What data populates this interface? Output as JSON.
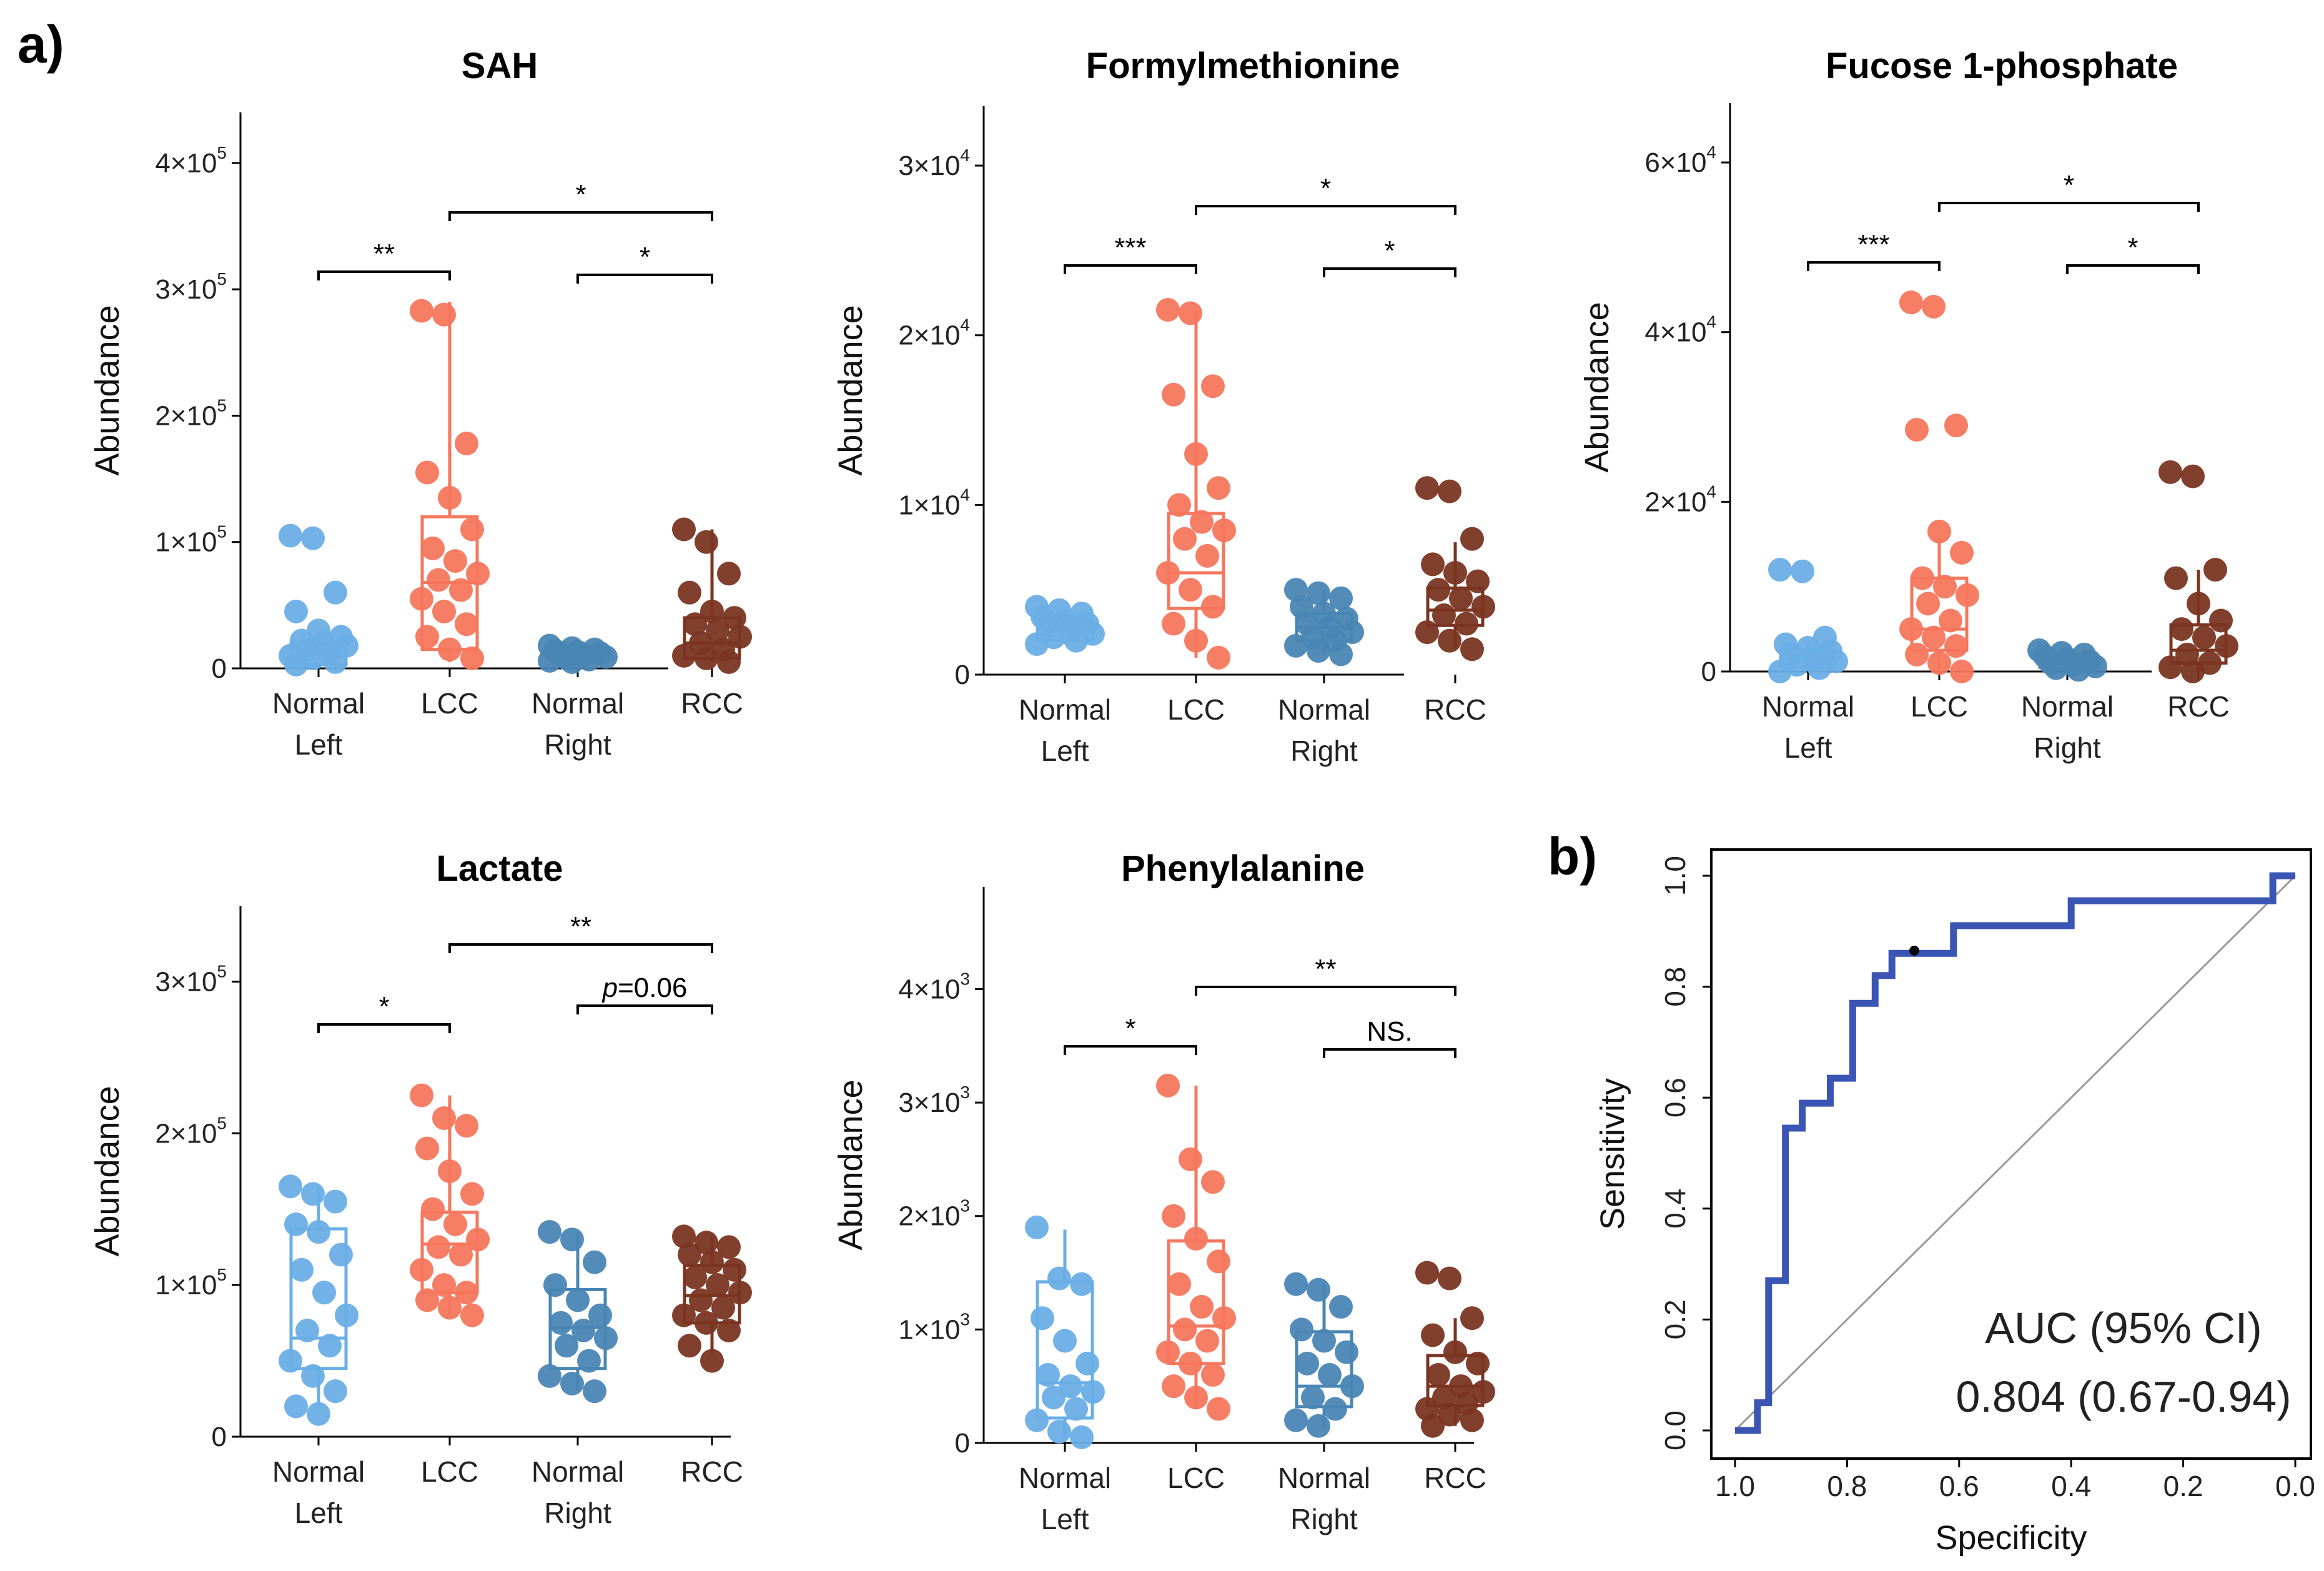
{
  "panel_a_label": "a)",
  "panel_b_label": "b)",
  "colors": {
    "Normal Left": "#6aaee6",
    "LCC": "#f5775d",
    "Normal Right": "#4a86b4",
    "RCC": "#7a3522",
    "roc": "#3a55b4"
  },
  "chart_data": [
    {
      "type": "boxplot",
      "title": "SAH",
      "ylabel": "Abundance",
      "categories": [
        "Normal Left",
        "LCC",
        "Normal Right",
        "RCC"
      ],
      "tick_lines": [
        [
          "Normal",
          "Left"
        ],
        [
          "LCC"
        ],
        [
          "Normal",
          "Right"
        ],
        [
          "RCC"
        ]
      ],
      "ylim": [
        0,
        440000
      ],
      "yticks": [
        0,
        100000,
        200000,
        300000,
        400000
      ],
      "ytick_labels": [
        [
          "0",
          ""
        ],
        [
          "1×10",
          "5"
        ],
        [
          "2×10",
          "5"
        ],
        [
          "3×10",
          "5"
        ],
        [
          "4×10",
          "5"
        ]
      ],
      "boxes": [
        {
          "min": 0,
          "q1": 3000,
          "median": 11000,
          "q3": 20000,
          "max": 25000
        },
        {
          "min": 5000,
          "q1": 15000,
          "median": 68000,
          "q3": 120000,
          "max": 290000
        },
        {
          "min": 3000,
          "q1": 7000,
          "median": 11000,
          "q3": 16000,
          "max": 20000
        },
        {
          "min": 5000,
          "q1": 8000,
          "median": 20000,
          "q3": 40000,
          "max": 110000
        }
      ],
      "points": [
        [
          105000,
          103000,
          60000,
          45000,
          30000,
          25000,
          22000,
          20000,
          18000,
          15000,
          12000,
          10000,
          8000,
          5000,
          3000
        ],
        [
          283000,
          280000,
          178000,
          155000,
          135000,
          110000,
          95000,
          85000,
          75000,
          70000,
          62000,
          55000,
          45000,
          35000,
          25000,
          15000,
          8000
        ],
        [
          18000,
          16000,
          15000,
          14000,
          13000,
          12000,
          11000,
          10000,
          9000,
          8000,
          7000,
          6000,
          5000
        ],
        [
          110000,
          100000,
          75000,
          60000,
          45000,
          40000,
          35000,
          30000,
          25000,
          20000,
          15000,
          10000,
          8000,
          5000
        ]
      ],
      "significance": [
        {
          "from": 0,
          "to": 1,
          "label": "**"
        },
        {
          "from": 1,
          "to": 3,
          "label": "*"
        },
        {
          "from": 2,
          "to": 3,
          "label": "*"
        }
      ]
    },
    {
      "type": "boxplot",
      "title": "Formylmethionine",
      "ylabel": "Abundance",
      "categories": [
        "Normal Left",
        "LCC",
        "Normal Right",
        "RCC"
      ],
      "tick_lines": [
        [
          "Normal",
          "Left"
        ],
        [
          "LCC"
        ],
        [
          "Normal",
          "Right"
        ],
        [
          "RCC"
        ]
      ],
      "ylim": [
        0,
        33500
      ],
      "yticks": [
        0,
        10000,
        20000,
        30000
      ],
      "ytick_labels": [
        [
          "0",
          ""
        ],
        [
          "1×10",
          "4"
        ],
        [
          "2×10",
          "4"
        ],
        [
          "3×10",
          "4"
        ]
      ],
      "boxes": [
        {
          "min": 1800,
          "q1": 2000,
          "median": 2700,
          "q3": 3300,
          "max": 4000
        },
        {
          "min": 1000,
          "q1": 3900,
          "median": 6000,
          "q3": 9500,
          "max": 21500
        },
        {
          "min": 1200,
          "q1": 2000,
          "median": 2800,
          "q3": 3600,
          "max": 5000
        },
        {
          "min": 1500,
          "q1": 2900,
          "median": 3800,
          "q3": 5100,
          "max": 7800
        }
      ],
      "points": [
        [
          4000,
          3800,
          3600,
          3400,
          3200,
          3000,
          2800,
          2600,
          2400,
          2200,
          2000,
          1800
        ],
        [
          21500,
          21300,
          17000,
          16500,
          13000,
          11000,
          10000,
          9000,
          8500,
          8000,
          7000,
          6000,
          5000,
          4000,
          3000,
          2000,
          1000
        ],
        [
          5000,
          4800,
          4500,
          4000,
          3600,
          3300,
          3000,
          2800,
          2500,
          2200,
          2000,
          1700,
          1400,
          1200
        ],
        [
          11000,
          10800,
          8000,
          6500,
          6000,
          5500,
          5000,
          4500,
          4000,
          3500,
          3000,
          2500,
          2000,
          1500
        ]
      ],
      "significance": [
        {
          "from": 0,
          "to": 1,
          "label": "***"
        },
        {
          "from": 1,
          "to": 3,
          "label": "*"
        },
        {
          "from": 2,
          "to": 3,
          "label": "*"
        }
      ]
    },
    {
      "type": "boxplot",
      "title": "Fucose 1-phosphate",
      "ylabel": "Abundance",
      "categories": [
        "Normal Left",
        "LCC",
        "Normal Right",
        "RCC"
      ],
      "tick_lines": [
        [
          "Normal",
          "Left"
        ],
        [
          "LCC"
        ],
        [
          "Normal",
          "Right"
        ],
        [
          "RCC"
        ]
      ],
      "ylim": [
        0,
        67000
      ],
      "yticks": [
        0,
        20000,
        40000,
        60000
      ],
      "ytick_labels": [
        [
          "0",
          ""
        ],
        [
          "2×10",
          "4"
        ],
        [
          "4×10",
          "4"
        ],
        [
          "6×10",
          "4"
        ]
      ],
      "boxes": [
        {
          "min": 0,
          "q1": 500,
          "median": 1500,
          "q3": 2500,
          "max": 3500
        },
        {
          "min": 0,
          "q1": 2500,
          "median": 5000,
          "q3": 11000,
          "max": 16000
        },
        {
          "min": 0,
          "q1": 500,
          "median": 1000,
          "q3": 1500,
          "max": 2000
        },
        {
          "min": 0,
          "q1": 1000,
          "median": 2500,
          "q3": 5500,
          "max": 12000
        }
      ],
      "points": [
        [
          12000,
          11800,
          4000,
          3200,
          2800,
          2400,
          2000,
          1600,
          1200,
          800,
          400,
          0
        ],
        [
          43500,
          43000,
          29000,
          28500,
          16500,
          14000,
          11000,
          10000,
          9000,
          8000,
          6000,
          5000,
          4000,
          3000,
          2000,
          1000,
          0
        ],
        [
          2500,
          2200,
          2000,
          1800,
          1500,
          1200,
          1000,
          800,
          600,
          400,
          200
        ],
        [
          23500,
          23000,
          12000,
          11000,
          8000,
          6000,
          5000,
          4000,
          3000,
          2000,
          1000,
          500,
          0
        ]
      ],
      "significance": [
        {
          "from": 0,
          "to": 1,
          "label": "***"
        },
        {
          "from": 1,
          "to": 3,
          "label": "*"
        },
        {
          "from": 2,
          "to": 3,
          "label": "*"
        }
      ]
    },
    {
      "type": "boxplot",
      "title": "Lactate",
      "ylabel": "Abundance",
      "categories": [
        "Normal Left",
        "LCC",
        "Normal Right",
        "RCC"
      ],
      "tick_lines": [
        [
          "Normal",
          "Left"
        ],
        [
          "LCC"
        ],
        [
          "Normal",
          "Right"
        ],
        [
          "RCC"
        ]
      ],
      "ylim": [
        0,
        350000
      ],
      "yticks": [
        0,
        100000,
        200000,
        300000
      ],
      "ytick_labels": [
        [
          "0",
          ""
        ],
        [
          "1×10",
          "5"
        ],
        [
          "2×10",
          "5"
        ],
        [
          "3×10",
          "5"
        ]
      ],
      "boxes": [
        {
          "min": 20000,
          "q1": 45000,
          "median": 65000,
          "q3": 137000,
          "max": 165000
        },
        {
          "min": 80000,
          "q1": 95000,
          "median": 127000,
          "q3": 148000,
          "max": 225000
        },
        {
          "min": 30000,
          "q1": 45000,
          "median": 72000,
          "q3": 97000,
          "max": 135000
        },
        {
          "min": 55000,
          "q1": 75000,
          "median": 93000,
          "q3": 113000,
          "max": 132000
        }
      ],
      "points": [
        [
          165000,
          160000,
          155000,
          140000,
          135000,
          120000,
          110000,
          95000,
          80000,
          70000,
          60000,
          50000,
          40000,
          30000,
          20000,
          15000
        ],
        [
          225000,
          210000,
          205000,
          190000,
          175000,
          160000,
          150000,
          140000,
          130000,
          125000,
          120000,
          110000,
          100000,
          95000,
          90000,
          85000,
          80000
        ],
        [
          135000,
          130000,
          115000,
          100000,
          90000,
          80000,
          75000,
          70000,
          65000,
          60000,
          50000,
          40000,
          35000,
          30000
        ],
        [
          132000,
          128000,
          125000,
          120000,
          115000,
          110000,
          105000,
          100000,
          95000,
          90000,
          85000,
          80000,
          75000,
          70000,
          60000,
          50000
        ]
      ],
      "significance": [
        {
          "from": 0,
          "to": 1,
          "label": "*"
        },
        {
          "from": 1,
          "to": 3,
          "label": "**"
        },
        {
          "from": 2,
          "to": 3,
          "label": "p=0.06",
          "italic_prefix": "p"
        }
      ]
    },
    {
      "type": "boxplot",
      "title": "Phenylalanine",
      "ylabel": "Abundance",
      "categories": [
        "Normal Left",
        "LCC",
        "Normal Right",
        "RCC"
      ],
      "tick_lines": [
        [
          "Normal",
          "Left"
        ],
        [
          "LCC"
        ],
        [
          "Normal",
          "Right"
        ],
        [
          "RCC"
        ]
      ],
      "ylim": [
        0,
        4900
      ],
      "yticks": [
        0,
        1000,
        2000,
        3000,
        4000
      ],
      "ytick_labels": [
        [
          "0",
          ""
        ],
        [
          "1×10",
          "3"
        ],
        [
          "2×10",
          "3"
        ],
        [
          "3×10",
          "3"
        ],
        [
          "4×10",
          "3"
        ]
      ],
      "boxes": [
        {
          "min": 50,
          "q1": 220,
          "median": 530,
          "q3": 1420,
          "max": 1880
        },
        {
          "min": 300,
          "q1": 700,
          "median": 1030,
          "q3": 1780,
          "max": 3150
        },
        {
          "min": 130,
          "q1": 320,
          "median": 500,
          "q3": 980,
          "max": 1400
        },
        {
          "min": 150,
          "q1": 330,
          "median": 500,
          "q3": 770,
          "max": 1100
        }
      ],
      "points": [
        [
          1900,
          1450,
          1400,
          1100,
          900,
          700,
          600,
          500,
          450,
          400,
          300,
          200,
          100,
          50
        ],
        [
          3150,
          2500,
          2300,
          2000,
          1800,
          1600,
          1400,
          1200,
          1100,
          1000,
          900,
          800,
          700,
          600,
          500,
          400,
          300
        ],
        [
          1400,
          1350,
          1200,
          1000,
          900,
          800,
          700,
          600,
          500,
          400,
          300,
          200,
          150
        ],
        [
          1500,
          1450,
          1100,
          950,
          800,
          700,
          600,
          500,
          450,
          400,
          350,
          300,
          250,
          200,
          150
        ]
      ],
      "significance": [
        {
          "from": 0,
          "to": 1,
          "label": "*"
        },
        {
          "from": 1,
          "to": 3,
          "label": "**"
        },
        {
          "from": 2,
          "to": 3,
          "label": "NS."
        }
      ]
    },
    {
      "type": "line",
      "subtype": "roc",
      "xlabel": "Specificity",
      "ylabel": "Sensitivity",
      "xlim": [
        1.0,
        0.0
      ],
      "ylim": [
        0.0,
        1.0
      ],
      "xticks": [
        1.0,
        0.8,
        0.6,
        0.4,
        0.2,
        0.0
      ],
      "xtick_labels": [
        "1.0",
        "0.8",
        "0.6",
        "0.4",
        "0.2",
        "0.0"
      ],
      "yticks": [
        0.0,
        0.2,
        0.4,
        0.6,
        0.8,
        1.0
      ],
      "ytick_labels": [
        "0.0",
        "0.2",
        "0.4",
        "0.6",
        "0.8",
        "1.0"
      ],
      "specificity": [
        1.0,
        0.96,
        0.96,
        0.94,
        0.94,
        0.91,
        0.91,
        0.88,
        0.88,
        0.83,
        0.83,
        0.79,
        0.79,
        0.75,
        0.75,
        0.72,
        0.72,
        0.68,
        0.68,
        0.61,
        0.61,
        0.4,
        0.4,
        0.04,
        0.04,
        0.0
      ],
      "sensitivity": [
        0.0,
        0.0,
        0.05,
        0.05,
        0.27,
        0.27,
        0.545,
        0.545,
        0.59,
        0.59,
        0.635,
        0.635,
        0.77,
        0.77,
        0.82,
        0.82,
        0.86,
        0.86,
        0.86,
        0.86,
        0.91,
        0.91,
        0.955,
        0.955,
        1.0,
        1.0
      ],
      "cutoff_point": {
        "specificity": 0.68,
        "sensitivity": 0.865
      },
      "auc_label": "AUC (95% CI)",
      "auc_value": "0.804 (0.67-0.94)"
    }
  ]
}
